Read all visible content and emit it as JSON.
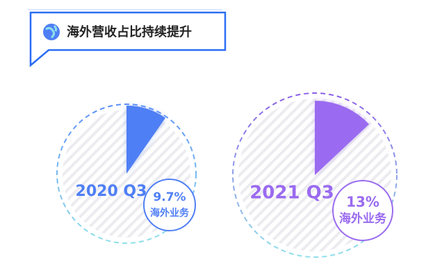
{
  "title": "海外营收占比持续提升",
  "chart_data": [
    {
      "type": "pie",
      "title": "2020 Q3",
      "categories": [
        "海外业务"
      ],
      "values": [
        9.7
      ],
      "value_labels": [
        "9.7%"
      ],
      "color": "#4f7ff5"
    },
    {
      "type": "pie",
      "title": "2021 Q3",
      "categories": [
        "海外业务"
      ],
      "values": [
        13
      ],
      "value_labels": [
        "13%"
      ],
      "color": "#9a6bf0"
    }
  ]
}
